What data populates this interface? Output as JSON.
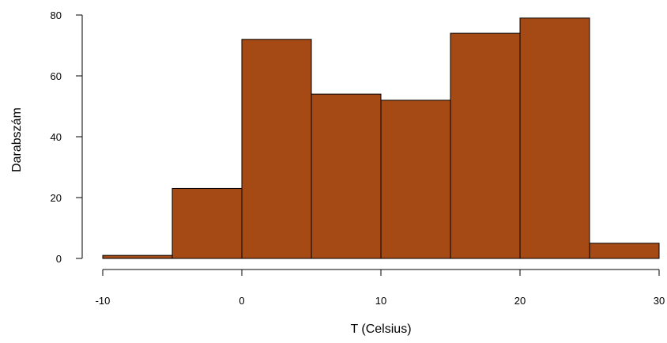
{
  "chart_data": {
    "type": "bar",
    "subtype": "histogram",
    "bins": [
      {
        "from": -10,
        "to": -5,
        "count": 1
      },
      {
        "from": -5,
        "to": 0,
        "count": 23
      },
      {
        "from": 0,
        "to": 5,
        "count": 72
      },
      {
        "from": 5,
        "to": 10,
        "count": 54
      },
      {
        "from": 10,
        "to": 15,
        "count": 52
      },
      {
        "from": 15,
        "to": 20,
        "count": 74
      },
      {
        "from": 20,
        "to": 25,
        "count": 79
      },
      {
        "from": 25,
        "to": 30,
        "count": 5
      }
    ],
    "xlabel": "T (Celsius)",
    "ylabel": "Darabszám",
    "xlim": [
      -10,
      30
    ],
    "ylim": [
      0,
      80
    ],
    "xticks": [
      -10,
      0,
      10,
      20,
      30
    ],
    "yticks": [
      0,
      20,
      40,
      60,
      80
    ],
    "bar_color": "#A64A15",
    "edge_color": "#000000",
    "grid": false,
    "legend": "none"
  }
}
